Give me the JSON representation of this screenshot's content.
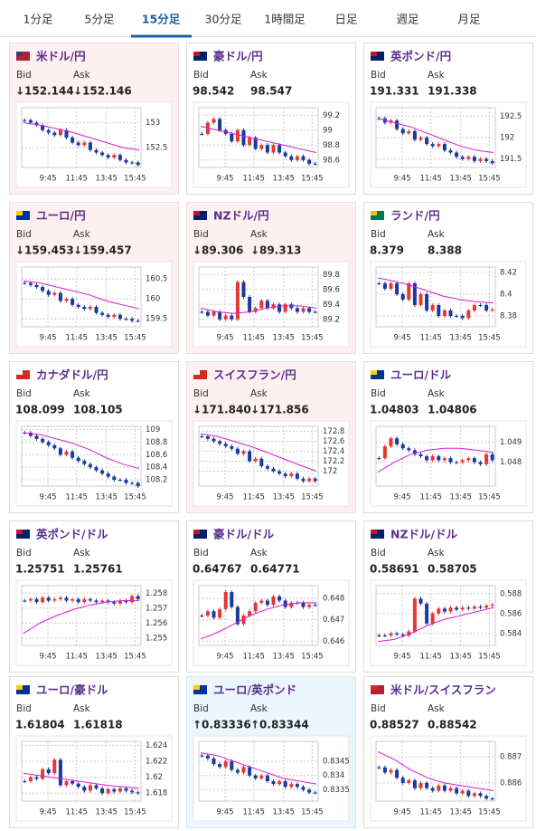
{
  "tabs": [
    "1分足",
    "5分足",
    "15分足",
    "30分足",
    "1時間足",
    "日足",
    "週足",
    "月足"
  ],
  "active_tab": 2,
  "chart_style": {
    "up_color": "#e53935",
    "down_color": "#1a3a9c",
    "ma_color": "#d81bd8",
    "grid": true
  },
  "cards": [
    {
      "pair": "米ドル/円",
      "bid_label": "Bid",
      "ask_label": "Ask",
      "bid": "↓152.144",
      "ask": "↓152.146",
      "trend": "down",
      "chart": {
        "type": "candlestick",
        "ylim": [
          152.1,
          153.3
        ],
        "yticks": [
          153,
          152.5
        ],
        "x_labels": [
          "9:45",
          "11:45",
          "13:45",
          "15:45"
        ],
        "closes": [
          153.05,
          153.0,
          152.95,
          152.85,
          152.8,
          152.75,
          152.85,
          152.7,
          152.6,
          152.55,
          152.6,
          152.45,
          152.4,
          152.35,
          152.3,
          152.35,
          152.25,
          152.2,
          152.2,
          152.15
        ],
        "ma": [
          153.0,
          152.95,
          152.88,
          152.8,
          152.7,
          152.6,
          152.5,
          152.45
        ]
      }
    },
    {
      "pair": "豪ドル/円",
      "bid_label": "Bid",
      "ask_label": "Ask",
      "bid": "98.542",
      "ask": "98.547",
      "trend": null,
      "chart": {
        "type": "candlestick",
        "ylim": [
          98.5,
          99.3
        ],
        "yticks": [
          99.2,
          99,
          98.8,
          98.6
        ],
        "x_labels": [
          "9:45",
          "11:45",
          "13:45",
          "15:45"
        ],
        "closes": [
          98.95,
          99.1,
          99.15,
          99.0,
          98.95,
          98.85,
          99.0,
          98.8,
          98.9,
          98.75,
          98.8,
          98.7,
          98.8,
          98.7,
          98.65,
          98.6,
          98.65,
          98.6,
          98.55,
          98.55
        ],
        "ma": [
          99.05,
          99.0,
          98.95,
          98.9,
          98.85,
          98.8,
          98.75,
          98.7
        ]
      }
    },
    {
      "pair": "英ポンド/円",
      "bid_label": "Bid",
      "ask_label": "Ask",
      "bid": "191.331",
      "ask": "191.338",
      "trend": null,
      "chart": {
        "type": "candlestick",
        "ylim": [
          191.3,
          192.7
        ],
        "yticks": [
          192.5,
          192,
          191.5
        ],
        "x_labels": [
          "9:45",
          "11:45",
          "13:45",
          "15:45"
        ],
        "closes": [
          192.45,
          192.35,
          192.4,
          192.2,
          192.1,
          192.15,
          191.95,
          192.0,
          191.85,
          191.8,
          191.85,
          191.7,
          191.65,
          191.55,
          191.5,
          191.55,
          191.45,
          191.5,
          191.45,
          191.4
        ],
        "ma": [
          192.45,
          192.35,
          192.25,
          192.1,
          191.95,
          191.8,
          191.7,
          191.65
        ]
      }
    },
    {
      "pair": "ユーロ/円",
      "bid_label": "Bid",
      "ask_label": "Ask",
      "bid": "↓159.453",
      "ask": "↓159.457",
      "trend": "down",
      "chart": {
        "type": "candlestick",
        "ylim": [
          159.3,
          160.8
        ],
        "yticks": [
          160.5,
          160,
          159.5
        ],
        "x_labels": [
          "9:45",
          "11:45",
          "13:45",
          "15:45"
        ],
        "closes": [
          160.4,
          160.35,
          160.3,
          160.2,
          160.1,
          160.15,
          159.95,
          160.0,
          159.85,
          159.8,
          159.75,
          159.8,
          159.65,
          159.6,
          159.55,
          159.6,
          159.5,
          159.5,
          159.45,
          159.45
        ],
        "ma": [
          160.45,
          160.4,
          160.3,
          160.2,
          160.1,
          159.95,
          159.85,
          159.75
        ]
      }
    },
    {
      "pair": "NZドル/円",
      "bid_label": "Bid",
      "ask_label": "Ask",
      "bid": "↓89.306",
      "ask": "↓89.313",
      "trend": "down",
      "chart": {
        "type": "candlestick",
        "ylim": [
          89.1,
          89.9
        ],
        "yticks": [
          89.8,
          89.6,
          89.4,
          89.2
        ],
        "x_labels": [
          "9:45",
          "11:45",
          "13:45",
          "15:45"
        ],
        "closes": [
          89.3,
          89.25,
          89.3,
          89.2,
          89.25,
          89.2,
          89.7,
          89.5,
          89.3,
          89.35,
          89.45,
          89.35,
          89.4,
          89.3,
          89.4,
          89.35,
          89.3,
          89.35,
          89.3,
          89.3
        ],
        "ma": [
          89.35,
          89.3,
          89.28,
          89.3,
          89.35,
          89.38,
          89.38,
          89.35
        ]
      }
    },
    {
      "pair": "ランド/円",
      "bid_label": "Bid",
      "ask_label": "Ask",
      "bid": "8.379",
      "ask": "8.388",
      "trend": null,
      "chart": {
        "type": "candlestick",
        "ylim": [
          8.37,
          8.425
        ],
        "yticks": [
          8.42,
          8.4,
          8.38
        ],
        "x_labels": [
          "9:45",
          "11:45",
          "13:45",
          "15:45"
        ],
        "closes": [
          8.41,
          8.405,
          8.41,
          8.4,
          8.395,
          8.41,
          8.39,
          8.4,
          8.385,
          8.39,
          8.38,
          8.385,
          8.38,
          8.38,
          8.378,
          8.385,
          8.39,
          8.39,
          8.385,
          8.386
        ],
        "ma": [
          8.415,
          8.412,
          8.408,
          8.403,
          8.398,
          8.395,
          8.393,
          8.392
        ]
      }
    },
    {
      "pair": "カナダドル/円",
      "bid_label": "Bid",
      "ask_label": "Ask",
      "bid": "108.099",
      "ask": "108.105",
      "trend": null,
      "chart": {
        "type": "candlestick",
        "ylim": [
          108.1,
          109.05
        ],
        "yticks": [
          109,
          108.8,
          108.6,
          108.4,
          108.2
        ],
        "x_labels": [
          "9:45",
          "11:45",
          "13:45",
          "15:45"
        ],
        "closes": [
          108.95,
          108.9,
          108.85,
          108.8,
          108.75,
          108.7,
          108.6,
          108.65,
          108.55,
          108.5,
          108.45,
          108.4,
          108.35,
          108.3,
          108.25,
          108.2,
          108.2,
          108.15,
          108.15,
          108.1
        ],
        "ma": [
          108.95,
          108.92,
          108.85,
          108.78,
          108.68,
          108.55,
          108.45,
          108.38
        ]
      }
    },
    {
      "pair": "スイスフラン/円",
      "bid_label": "Bid",
      "ask_label": "Ask",
      "bid": "↓171.840",
      "ask": "↓171.856",
      "trend": "down",
      "chart": {
        "type": "candlestick",
        "ylim": [
          171.7,
          172.9
        ],
        "yticks": [
          172.8,
          172.6,
          172.4,
          172.2,
          172
        ],
        "x_labels": [
          "9:45",
          "11:45",
          "13:45",
          "15:45"
        ],
        "closes": [
          172.7,
          172.65,
          172.6,
          172.55,
          172.5,
          172.45,
          172.35,
          172.4,
          172.2,
          172.25,
          172.1,
          172.05,
          172.0,
          171.95,
          171.9,
          171.95,
          171.85,
          171.8,
          171.85,
          171.8
        ],
        "ma": [
          172.75,
          172.7,
          172.6,
          172.5,
          172.38,
          172.25,
          172.12,
          172.0
        ]
      }
    },
    {
      "pair": "ユーロ/ドル",
      "bid_label": "Bid",
      "ask_label": "Ask",
      "bid": "1.04803",
      "ask": "1.04806",
      "trend": null,
      "chart": {
        "type": "candlestick",
        "ylim": [
          1.0468,
          1.0498
        ],
        "yticks": [
          1.049,
          1.048
        ],
        "x_labels": [
          "9:45",
          "11:45",
          "13:45",
          "15:45"
        ],
        "closes": [
          1.0482,
          1.0488,
          1.0492,
          1.0489,
          1.0487,
          1.0486,
          1.0484,
          1.0483,
          1.0481,
          1.0483,
          1.0481,
          1.0482,
          1.048,
          1.048,
          1.0481,
          1.0482,
          1.048,
          1.0479,
          1.0484,
          1.0481
        ],
        "ma": [
          1.0475,
          1.048,
          1.0484,
          1.0486,
          1.0487,
          1.0487,
          1.0486,
          1.0485
        ]
      }
    },
    {
      "pair": "英ポンド/ドル",
      "bid_label": "Bid",
      "ask_label": "Ask",
      "bid": "1.25751",
      "ask": "1.25761",
      "trend": null,
      "chart": {
        "type": "candlestick",
        "ylim": [
          1.2545,
          1.2585
        ],
        "yticks": [
          1.258,
          1.257,
          1.256,
          1.255
        ],
        "x_labels": [
          "9:45",
          "11:45",
          "13:45",
          "15:45"
        ],
        "closes": [
          1.2575,
          1.2576,
          1.2574,
          1.2577,
          1.2575,
          1.2576,
          1.2577,
          1.2575,
          1.2576,
          1.2574,
          1.2576,
          1.2575,
          1.2574,
          1.2575,
          1.2574,
          1.2573,
          1.2575,
          1.2574,
          1.2578,
          1.2576
        ],
        "ma": [
          1.2553,
          1.256,
          1.2565,
          1.2569,
          1.2572,
          1.2574,
          1.2575,
          1.2575
        ]
      }
    },
    {
      "pair": "豪ドル/ドル",
      "bid_label": "Bid",
      "ask_label": "Ask",
      "bid": "0.64767",
      "ask": "0.64771",
      "trend": null,
      "chart": {
        "type": "candlestick",
        "ylim": [
          0.6458,
          0.6486
        ],
        "yticks": [
          0.648,
          0.647,
          0.646
        ],
        "x_labels": [
          "9:45",
          "11:45",
          "13:45",
          "15:45"
        ],
        "closes": [
          0.6472,
          0.6474,
          0.6471,
          0.6475,
          0.6483,
          0.6476,
          0.6468,
          0.6472,
          0.6474,
          0.6478,
          0.6479,
          0.6477,
          0.6481,
          0.6479,
          0.6476,
          0.6478,
          0.6478,
          0.6476,
          0.6477,
          0.6477
        ],
        "ma": [
          0.6461,
          0.6464,
          0.6468,
          0.6472,
          0.6475,
          0.6477,
          0.6478,
          0.6478
        ]
      }
    },
    {
      "pair": "NZドル/ドル",
      "bid_label": "Bid",
      "ask_label": "Ask",
      "bid": "0.58691",
      "ask": "0.58705",
      "trend": null,
      "chart": {
        "type": "candlestick",
        "ylim": [
          0.5828,
          0.5888
        ],
        "yticks": [
          0.588,
          0.586,
          0.584
        ],
        "x_labels": [
          "9:45",
          "11:45",
          "13:45",
          "15:45"
        ],
        "closes": [
          0.5838,
          0.5838,
          0.584,
          0.5839,
          0.5838,
          0.5842,
          0.5875,
          0.587,
          0.585,
          0.586,
          0.5865,
          0.5862,
          0.5866,
          0.5864,
          0.5866,
          0.5865,
          0.5867,
          0.5866,
          0.5868,
          0.5869
        ],
        "ma": [
          0.5832,
          0.5834,
          0.584,
          0.5848,
          0.5854,
          0.5858,
          0.5862,
          0.5866
        ]
      }
    },
    {
      "pair": "ユーロ/豪ドル",
      "bid_label": "Bid",
      "ask_label": "Ask",
      "bid": "1.61804",
      "ask": "1.61818",
      "trend": null,
      "chart": {
        "type": "candlestick",
        "ylim": [
          1.617,
          1.6245
        ],
        "yticks": [
          1.624,
          1.622,
          1.62,
          1.618
        ],
        "x_labels": [
          "9:45",
          "11:45",
          "13:45",
          "15:45"
        ],
        "closes": [
          1.6195,
          1.62,
          1.6198,
          1.621,
          1.6205,
          1.6222,
          1.619,
          1.6195,
          1.6192,
          1.6188,
          1.6183,
          1.619,
          1.6186,
          1.618,
          1.6185,
          1.6182,
          1.6186,
          1.6183,
          1.6181,
          1.618
        ],
        "ma": [
          1.6205,
          1.6202,
          1.6199,
          1.6196,
          1.6193,
          1.619,
          1.6188,
          1.6186
        ]
      }
    },
    {
      "pair": "ユーロ/英ポンド",
      "bid_label": "Bid",
      "ask_label": "Ask",
      "bid": "↑0.83336",
      "ask": "↑0.83344",
      "trend": "up",
      "chart": {
        "type": "candlestick",
        "ylim": [
          0.8331,
          0.8352
        ],
        "yticks": [
          0.8345,
          0.834,
          0.8335
        ],
        "x_labels": [
          "9:45",
          "11:45",
          "13:45",
          "15:45"
        ],
        "closes": [
          0.8347,
          0.8346,
          0.8344,
          0.8343,
          0.8345,
          0.8342,
          0.8341,
          0.8343,
          0.834,
          0.8339,
          0.834,
          0.8338,
          0.8337,
          0.8338,
          0.8336,
          0.8337,
          0.8336,
          0.8335,
          0.8334,
          0.8334
        ],
        "ma": [
          0.8348,
          0.8347,
          0.8345,
          0.8343,
          0.8341,
          0.8339,
          0.8338,
          0.8337
        ]
      }
    },
    {
      "pair": "米ドル/スイスフラン",
      "bid_label": "Bid",
      "ask_label": "Ask",
      "bid": "0.88527",
      "ask": "0.88542",
      "trend": null,
      "chart": {
        "type": "candlestick",
        "ylim": [
          0.8853,
          0.8876
        ],
        "yticks": [
          0.887,
          0.886
        ],
        "x_labels": [
          "9:45",
          "11:45",
          "13:45",
          "15:45"
        ],
        "closes": [
          0.8866,
          0.8864,
          0.8865,
          0.8862,
          0.886,
          0.8861,
          0.8858,
          0.886,
          0.8858,
          0.8857,
          0.8859,
          0.8857,
          0.8858,
          0.8856,
          0.8857,
          0.8855,
          0.8856,
          0.8855,
          0.8854,
          0.8854
        ],
        "ma": [
          0.8872,
          0.8869,
          0.8865,
          0.8862,
          0.886,
          0.8859,
          0.8858,
          0.8857
        ]
      }
    }
  ]
}
